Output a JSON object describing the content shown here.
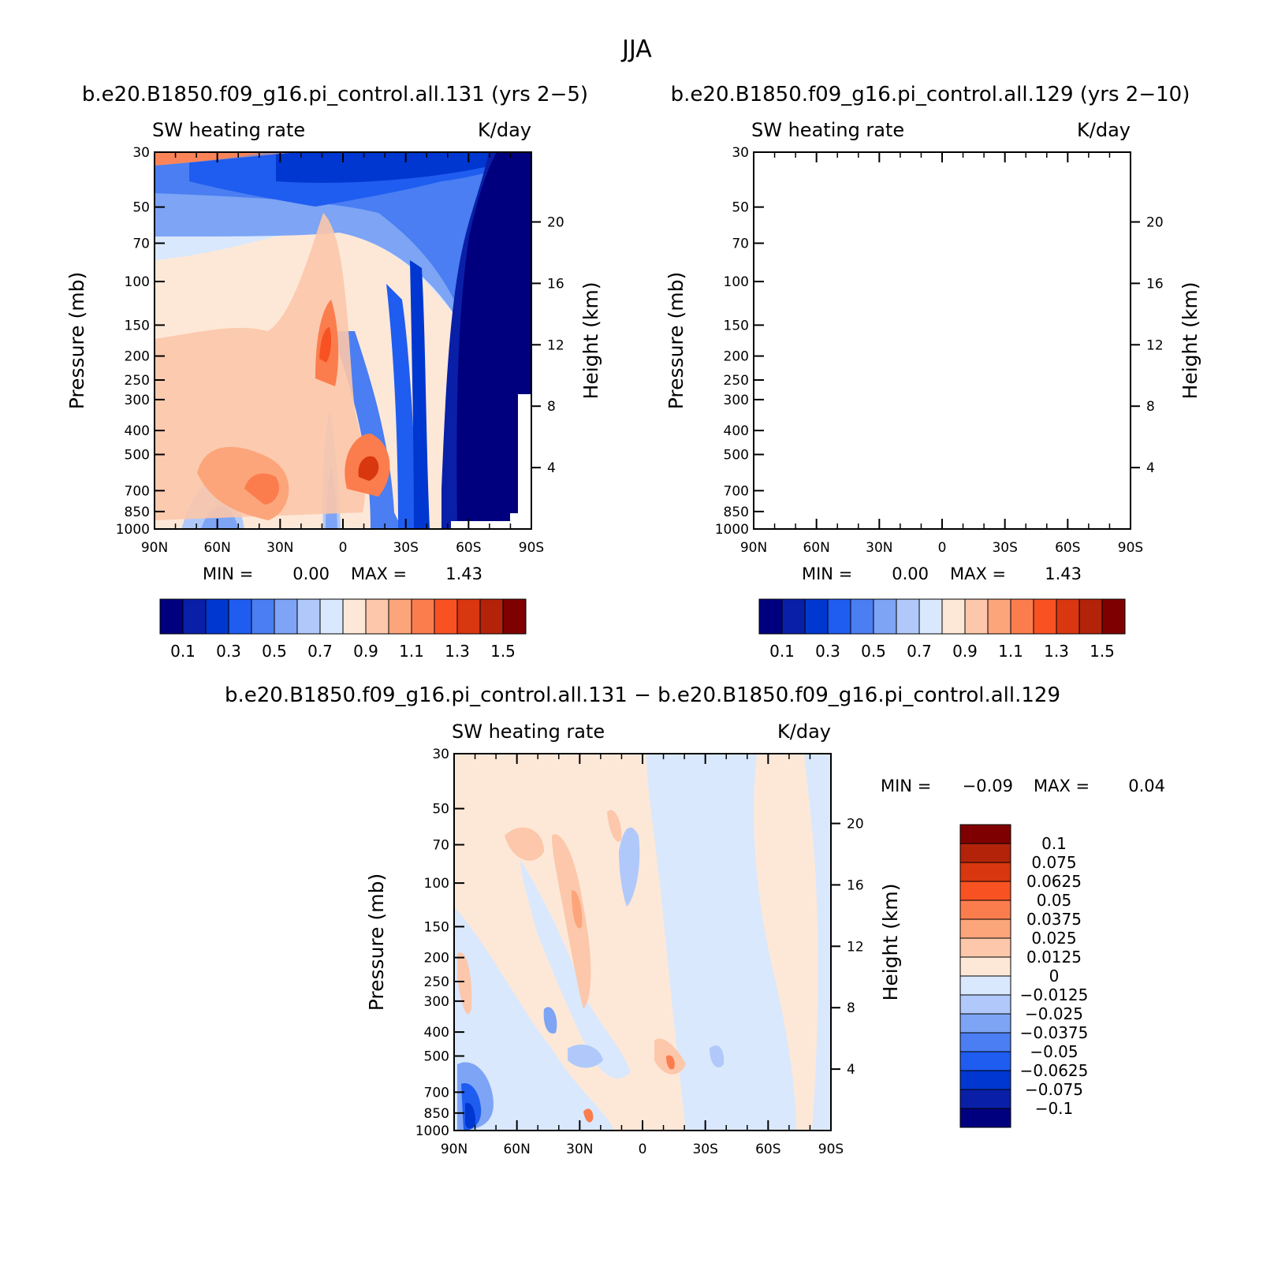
{
  "title": "JJA",
  "colors": {
    "warm": [
      "#fde8d8",
      "#fcc7aa",
      "#fca57b",
      "#fb7d4e",
      "#f85223",
      "#d9370f",
      "#b2230a",
      "#7f0000"
    ],
    "cool": [
      "#00007f",
      "#0a1fa8",
      "#0037d0",
      "#1f5cf0",
      "#4a7ef2",
      "#7da4f5",
      "#b0c9fa",
      "#d9e8fc"
    ]
  },
  "chart_data": [
    {
      "type": "heatmap",
      "title": "b.e20.B1850.f09_g16.pi_control.all.131 (yrs 2−5)",
      "left_label": "SW heating rate",
      "right_label": "K/day",
      "xlabel": "",
      "ylabel": "Pressure (mb)",
      "ylabel_right": "Height (km)",
      "x_ticks": [
        "90N",
        "60N",
        "30N",
        "0",
        "30S",
        "60S",
        "90S"
      ],
      "y_ticks": [
        "30",
        "50",
        "70",
        "100",
        "150",
        "200",
        "250",
        "300",
        "400",
        "500",
        "700",
        "850",
        "1000"
      ],
      "height_ticks": [
        "20",
        "16",
        "12",
        "8",
        "4"
      ],
      "xlim": [
        -90,
        90
      ],
      "ylim": [
        1000,
        30
      ],
      "y_scale": "log",
      "min_label": "MIN =",
      "min_value": "0.00",
      "max_label": "MAX =",
      "max_value": "1.43",
      "colorbar": {
        "orientation": "horizontal",
        "levels": 16,
        "labels": [
          "0.1",
          "0.3",
          "0.5",
          "0.7",
          "0.9",
          "1.1",
          "1.3",
          "1.5"
        ]
      }
    },
    {
      "type": "heatmap",
      "title": "b.e20.B1850.f09_g16.pi_control.all.129 (yrs 2−10)",
      "left_label": "SW heating rate",
      "right_label": "K/day",
      "xlabel": "",
      "ylabel": "Pressure (mb)",
      "ylabel_right": "Height (km)",
      "x_ticks": [
        "90N",
        "60N",
        "30N",
        "0",
        "30S",
        "60S",
        "90S"
      ],
      "y_ticks": [
        "30",
        "50",
        "70",
        "100",
        "150",
        "200",
        "250",
        "300",
        "400",
        "500",
        "700",
        "850",
        "1000"
      ],
      "height_ticks": [
        "20",
        "16",
        "12",
        "8",
        "4"
      ],
      "xlim": [
        -90,
        90
      ],
      "ylim": [
        1000,
        30
      ],
      "y_scale": "log",
      "min_label": "MIN =",
      "min_value": "0.00",
      "max_label": "MAX =",
      "max_value": "1.43",
      "colorbar": {
        "orientation": "horizontal",
        "levels": 16,
        "labels": [
          "0.1",
          "0.3",
          "0.5",
          "0.7",
          "0.9",
          "1.1",
          "1.3",
          "1.5"
        ]
      }
    },
    {
      "type": "heatmap",
      "title": "b.e20.B1850.f09_g16.pi_control.all.131 − b.e20.B1850.f09_g16.pi_control.all.129",
      "left_label": "SW heating rate",
      "right_label": "K/day",
      "xlabel": "",
      "ylabel": "Pressure (mb)",
      "ylabel_right": "Height (km)",
      "x_ticks": [
        "90N",
        "60N",
        "30N",
        "0",
        "30S",
        "60S",
        "90S"
      ],
      "y_ticks": [
        "30",
        "50",
        "70",
        "100",
        "150",
        "200",
        "250",
        "300",
        "400",
        "500",
        "700",
        "850",
        "1000"
      ],
      "height_ticks": [
        "20",
        "16",
        "12",
        "8",
        "4"
      ],
      "xlim": [
        -90,
        90
      ],
      "ylim": [
        1000,
        30
      ],
      "y_scale": "log",
      "min_label": "MIN =",
      "min_value": "−0.09",
      "max_label": "MAX =",
      "max_value": "0.04",
      "colorbar": {
        "orientation": "vertical",
        "levels": 16,
        "labels": [
          "0.1",
          "0.075",
          "0.0625",
          "0.05",
          "0.0375",
          "0.025",
          "0.0125",
          "0",
          "−0.0125",
          "−0.025",
          "−0.0375",
          "−0.05",
          "−0.0625",
          "−0.075",
          "−0.1"
        ]
      }
    }
  ]
}
